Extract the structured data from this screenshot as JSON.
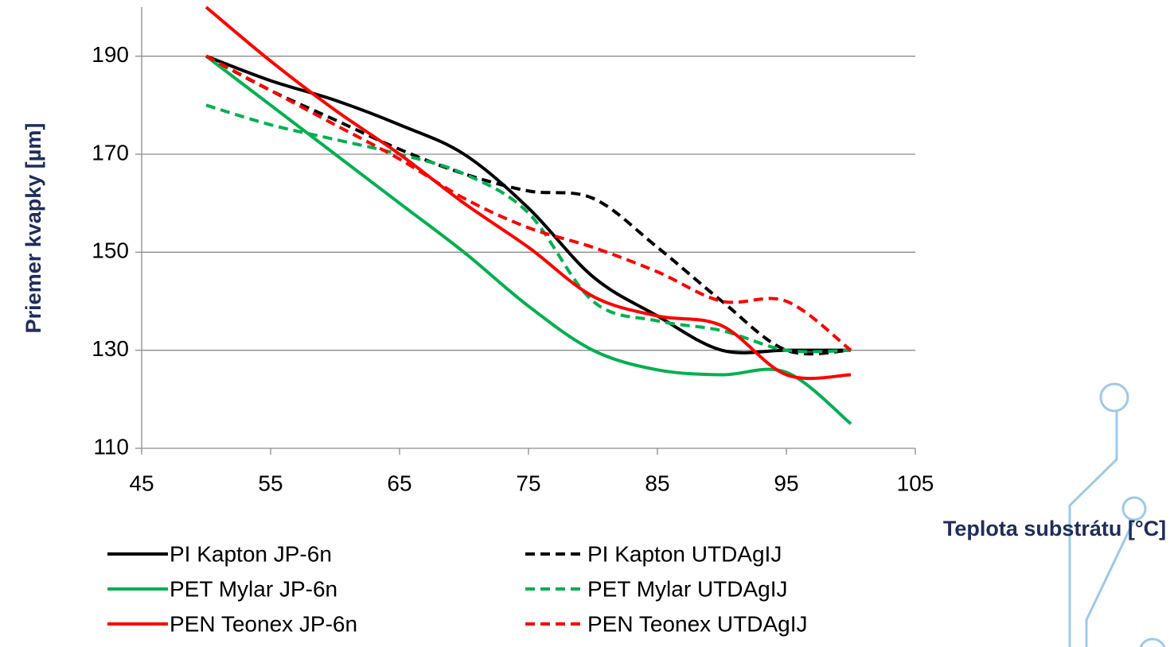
{
  "chart_data": {
    "type": "line",
    "x_label": "Teplota substrátu [°C]",
    "y_label": "Priemer kvapky [µm]",
    "x": [
      50,
      55,
      60,
      65,
      70,
      75,
      80,
      85,
      90,
      95,
      100
    ],
    "series": [
      {
        "name": "PI Kapton JP-6n",
        "color": "#000000",
        "dashed": false,
        "values": [
          190,
          185,
          181,
          176,
          170,
          159,
          145,
          137,
          130,
          130,
          130
        ]
      },
      {
        "name": "PI Kapton UTDAgIJ",
        "color": "#000000",
        "dashed": true,
        "values": [
          190,
          183,
          177,
          171,
          166,
          162.5,
          161,
          151,
          140,
          130,
          130
        ]
      },
      {
        "name": "PET Mylar JP-6n",
        "color": "#00b050",
        "dashed": false,
        "values": [
          190,
          180,
          170,
          160,
          150,
          139,
          130,
          126,
          125,
          125.5,
          115
        ]
      },
      {
        "name": "PET Mylar UTDAgIJ",
        "color": "#00b050",
        "dashed": true,
        "values": [
          180,
          176,
          173,
          170,
          166,
          158,
          140,
          136,
          134,
          130,
          130
        ]
      },
      {
        "name": "PEN Teonex JP-6n",
        "color": "#ff0000",
        "dashed": false,
        "values": [
          200,
          189,
          179,
          170,
          160,
          151,
          141,
          137,
          135,
          125,
          125
        ]
      },
      {
        "name": "PEN Teonex UTDAgIJ",
        "color": "#ff0000",
        "dashed": true,
        "values": [
          190,
          183,
          176,
          169,
          161,
          155,
          151,
          146,
          140,
          140,
          130
        ]
      }
    ],
    "xlim": [
      45,
      105
    ],
    "xticks": [
      45,
      55,
      65,
      75,
      85,
      95,
      105
    ],
    "ylim": [
      110,
      200
    ],
    "yticks": [
      110,
      130,
      150,
      170,
      190
    ],
    "grid": true,
    "legend": "bottom"
  }
}
